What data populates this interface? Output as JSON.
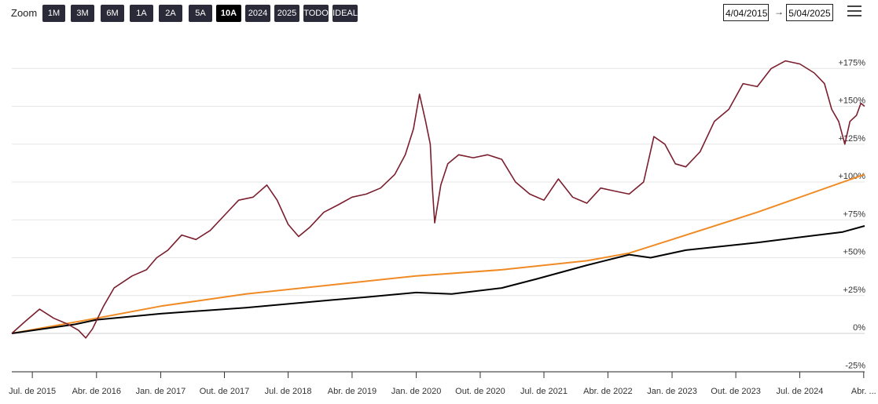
{
  "toolbar": {
    "zoom_label": "Zoom",
    "buttons": [
      "1M",
      "3M",
      "6M",
      "1A",
      "2A",
      "5A",
      "10A",
      "2024",
      "2025",
      "TODO",
      "IDEAL"
    ],
    "active": "10A",
    "from_date": "4/04/2015",
    "to_date": "5/04/2025",
    "arrow": "→",
    "menu_icon": "hamburger-menu-icon"
  },
  "colors": {
    "series_price": "#7b1e2e",
    "series_orange": "#f08a24",
    "series_black": "#000000",
    "grid": "#e6e6e6"
  },
  "chart_data": {
    "type": "line",
    "ylim": [
      -25,
      185
    ],
    "y_ticks": [
      {
        "value": 175,
        "label": "+175%"
      },
      {
        "value": 150,
        "label": "+150%"
      },
      {
        "value": 125,
        "label": "+125%"
      },
      {
        "value": 100,
        "label": "+100%"
      },
      {
        "value": 75,
        "label": "+75%"
      },
      {
        "value": 50,
        "label": "+50%"
      },
      {
        "value": 25,
        "label": "+25%"
      },
      {
        "value": 0,
        "label": "0%"
      },
      {
        "value": -25,
        "label": "-25%"
      }
    ],
    "x_domain": [
      "2015-04-04",
      "2025-04-05"
    ],
    "x_ticks": [
      {
        "date": "2015-07-01",
        "label": "Jul. de 2015"
      },
      {
        "date": "2016-04-01",
        "label": "Abr. de 2016"
      },
      {
        "date": "2017-01-01",
        "label": "Jan. de 2017"
      },
      {
        "date": "2017-10-01",
        "label": "Out. de 2017"
      },
      {
        "date": "2018-07-01",
        "label": "Jul. de 2018"
      },
      {
        "date": "2019-04-01",
        "label": "Abr. de 2019"
      },
      {
        "date": "2020-01-01",
        "label": "Jan. de 2020"
      },
      {
        "date": "2020-10-01",
        "label": "Out. de 2020"
      },
      {
        "date": "2021-07-01",
        "label": "Jul. de 2021"
      },
      {
        "date": "2022-04-01",
        "label": "Abr. de 2022"
      },
      {
        "date": "2023-01-01",
        "label": "Jan. de 2023"
      },
      {
        "date": "2023-10-01",
        "label": "Out. de 2023"
      },
      {
        "date": "2024-07-01",
        "label": "Jul. de 2024"
      },
      {
        "date": "2025-04-01",
        "label": "Abr. ..."
      }
    ],
    "series": [
      {
        "color": "#7b1e2e",
        "points": [
          [
            "2015-04-04",
            0
          ],
          [
            "2015-06-01",
            8
          ],
          [
            "2015-08-01",
            16
          ],
          [
            "2015-10-01",
            10
          ],
          [
            "2015-12-01",
            6
          ],
          [
            "2016-01-15",
            2
          ],
          [
            "2016-02-15",
            -3
          ],
          [
            "2016-03-15",
            3
          ],
          [
            "2016-05-01",
            18
          ],
          [
            "2016-06-15",
            30
          ],
          [
            "2016-09-01",
            38
          ],
          [
            "2016-11-01",
            42
          ],
          [
            "2016-12-15",
            50
          ],
          [
            "2017-02-01",
            55
          ],
          [
            "2017-04-01",
            65
          ],
          [
            "2017-06-01",
            62
          ],
          [
            "2017-08-01",
            68
          ],
          [
            "2017-10-01",
            78
          ],
          [
            "2017-12-01",
            88
          ],
          [
            "2018-02-01",
            90
          ],
          [
            "2018-04-01",
            98
          ],
          [
            "2018-05-15",
            88
          ],
          [
            "2018-07-01",
            72
          ],
          [
            "2018-08-15",
            64
          ],
          [
            "2018-10-01",
            70
          ],
          [
            "2018-12-01",
            80
          ],
          [
            "2019-02-01",
            85
          ],
          [
            "2019-04-01",
            90
          ],
          [
            "2019-06-01",
            92
          ],
          [
            "2019-08-01",
            96
          ],
          [
            "2019-10-01",
            105
          ],
          [
            "2019-11-15",
            118
          ],
          [
            "2019-12-20",
            135
          ],
          [
            "2020-01-15",
            158
          ],
          [
            "2020-02-10",
            140
          ],
          [
            "2020-03-01",
            125
          ],
          [
            "2020-03-10",
            96
          ],
          [
            "2020-03-20",
            73
          ],
          [
            "2020-04-15",
            98
          ],
          [
            "2020-05-15",
            112
          ],
          [
            "2020-07-01",
            118
          ],
          [
            "2020-09-01",
            116
          ],
          [
            "2020-11-01",
            118
          ],
          [
            "2021-01-01",
            115
          ],
          [
            "2021-03-01",
            100
          ],
          [
            "2021-05-01",
            92
          ],
          [
            "2021-07-01",
            88
          ],
          [
            "2021-09-01",
            102
          ],
          [
            "2021-11-01",
            90
          ],
          [
            "2022-01-01",
            86
          ],
          [
            "2022-03-01",
            96
          ],
          [
            "2022-05-01",
            94
          ],
          [
            "2022-07-01",
            92
          ],
          [
            "2022-09-01",
            100
          ],
          [
            "2022-10-15",
            130
          ],
          [
            "2022-12-01",
            125
          ],
          [
            "2023-01-15",
            112
          ],
          [
            "2023-03-01",
            110
          ],
          [
            "2023-05-01",
            120
          ],
          [
            "2023-07-01",
            140
          ],
          [
            "2023-09-01",
            148
          ],
          [
            "2023-11-01",
            165
          ],
          [
            "2024-01-01",
            163
          ],
          [
            "2024-03-01",
            175
          ],
          [
            "2024-05-01",
            180
          ],
          [
            "2024-07-01",
            178
          ],
          [
            "2024-09-01",
            172
          ],
          [
            "2024-10-15",
            165
          ],
          [
            "2024-11-15",
            148
          ],
          [
            "2024-12-15",
            140
          ],
          [
            "2025-01-10",
            125
          ],
          [
            "2025-02-01",
            140
          ],
          [
            "2025-03-01",
            144
          ],
          [
            "2025-03-20",
            152
          ],
          [
            "2025-04-05",
            150
          ]
        ]
      },
      {
        "color": "#f08a24",
        "points": [
          [
            "2015-04-04",
            0
          ],
          [
            "2016-04-01",
            10
          ],
          [
            "2017-01-01",
            18
          ],
          [
            "2018-01-01",
            26
          ],
          [
            "2019-01-01",
            32
          ],
          [
            "2020-01-01",
            38
          ],
          [
            "2021-01-01",
            42
          ],
          [
            "2022-01-01",
            48
          ],
          [
            "2022-07-01",
            53
          ],
          [
            "2023-01-01",
            62
          ],
          [
            "2024-01-01",
            80
          ],
          [
            "2025-04-05",
            105
          ]
        ]
      },
      {
        "color": "#000000",
        "points": [
          [
            "2015-04-04",
            0
          ],
          [
            "2016-01-01",
            6
          ],
          [
            "2016-04-01",
            9
          ],
          [
            "2017-01-01",
            13
          ],
          [
            "2018-01-01",
            17
          ],
          [
            "2019-01-01",
            22
          ],
          [
            "2019-06-01",
            24
          ],
          [
            "2020-01-01",
            27
          ],
          [
            "2020-06-01",
            26
          ],
          [
            "2021-01-01",
            30
          ],
          [
            "2021-06-01",
            36
          ],
          [
            "2022-01-01",
            45
          ],
          [
            "2022-07-01",
            52
          ],
          [
            "2022-10-01",
            50
          ],
          [
            "2023-03-01",
            55
          ],
          [
            "2024-01-01",
            60
          ],
          [
            "2025-01-01",
            67
          ],
          [
            "2025-04-05",
            71
          ]
        ]
      }
    ]
  }
}
